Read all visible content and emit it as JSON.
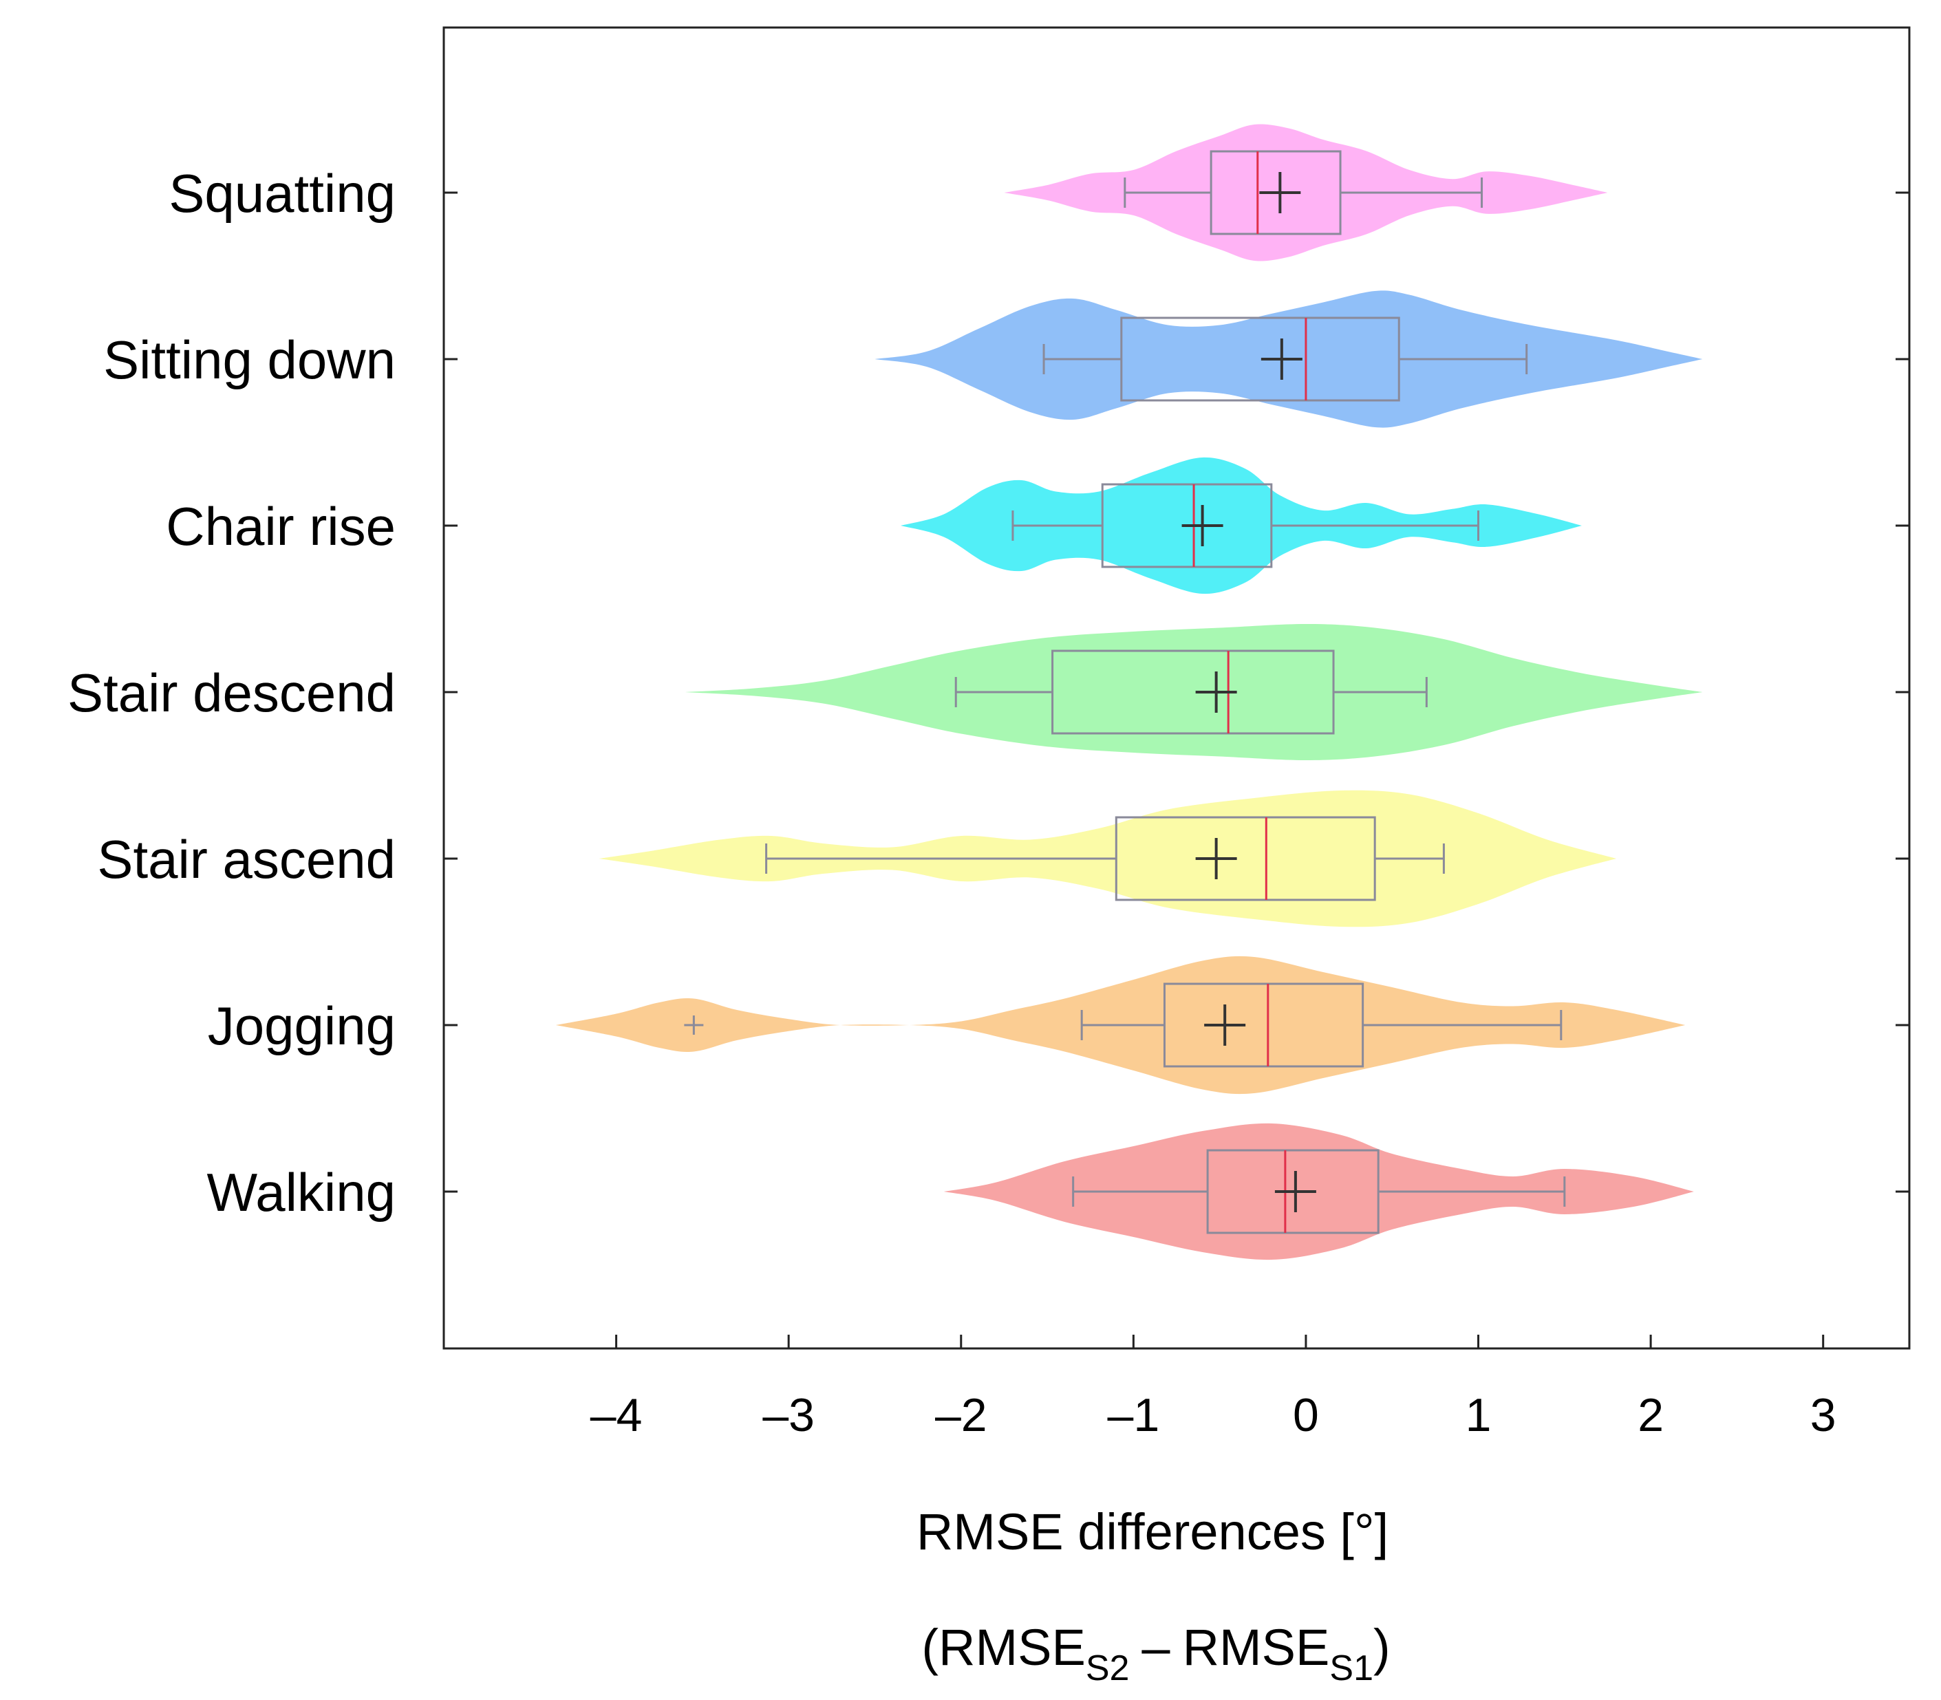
{
  "chart_data": {
    "type": "violin",
    "orientation": "horizontal",
    "xlabel": "RMSE differences [°]",
    "xlabel_formula": {
      "open": "(",
      "term1": "RMSE",
      "sub1": "S2",
      "minus": "–",
      "term2": "RMSE",
      "sub2": "S1",
      "close": ")"
    },
    "xlim": [
      -5,
      3.5
    ],
    "xticks": [
      {
        "value": -4,
        "label": "–4"
      },
      {
        "value": -3,
        "label": "–3"
      },
      {
        "value": -2,
        "label": "–2"
      },
      {
        "value": -1,
        "label": "–1"
      },
      {
        "value": 0,
        "label": "0"
      },
      {
        "value": 1,
        "label": "1"
      },
      {
        "value": 2,
        "label": "2"
      },
      {
        "value": 3,
        "label": "3"
      }
    ],
    "grid": false,
    "series": [
      {
        "name": "Squatting",
        "color": "#ffb3f5",
        "box": {
          "whisker_low": -1.05,
          "q1": -0.55,
          "median": -0.28,
          "q3": 0.2,
          "whisker_high": 1.02
        },
        "mean": -0.15,
        "outliers": [],
        "density": [
          [
            -1.75,
            0.0
          ],
          [
            -1.5,
            0.1
          ],
          [
            -1.25,
            0.25
          ],
          [
            -1.0,
            0.3
          ],
          [
            -0.75,
            0.55
          ],
          [
            -0.5,
            0.75
          ],
          [
            -0.3,
            0.9
          ],
          [
            -0.1,
            0.85
          ],
          [
            0.1,
            0.7
          ],
          [
            0.35,
            0.55
          ],
          [
            0.6,
            0.3
          ],
          [
            0.85,
            0.18
          ],
          [
            1.05,
            0.28
          ],
          [
            1.3,
            0.22
          ],
          [
            1.55,
            0.1
          ],
          [
            1.75,
            0.0
          ]
        ]
      },
      {
        "name": "Sitting down",
        "color": "#90bff8",
        "box": {
          "whisker_low": -1.52,
          "q1": -1.07,
          "median": 0.0,
          "q3": 0.54,
          "whisker_high": 1.28
        },
        "mean": -0.14,
        "outliers": [],
        "density": [
          [
            -2.5,
            0.0
          ],
          [
            -2.2,
            0.1
          ],
          [
            -1.9,
            0.4
          ],
          [
            -1.6,
            0.7
          ],
          [
            -1.35,
            0.8
          ],
          [
            -1.1,
            0.65
          ],
          [
            -0.8,
            0.45
          ],
          [
            -0.5,
            0.45
          ],
          [
            -0.2,
            0.6
          ],
          [
            0.1,
            0.75
          ],
          [
            0.4,
            0.9
          ],
          [
            0.6,
            0.85
          ],
          [
            0.9,
            0.65
          ],
          [
            1.3,
            0.45
          ],
          [
            1.8,
            0.25
          ],
          [
            2.1,
            0.1
          ],
          [
            2.3,
            0.0
          ]
        ]
      },
      {
        "name": "Chair rise",
        "color": "#52eff7",
        "box": {
          "whisker_low": -1.7,
          "q1": -1.18,
          "median": -0.65,
          "q3": -0.2,
          "whisker_high": 1.0
        },
        "mean": -0.6,
        "outliers": [],
        "density": [
          [
            -2.35,
            0.0
          ],
          [
            -2.1,
            0.15
          ],
          [
            -1.85,
            0.5
          ],
          [
            -1.65,
            0.6
          ],
          [
            -1.45,
            0.45
          ],
          [
            -1.2,
            0.45
          ],
          [
            -0.9,
            0.7
          ],
          [
            -0.6,
            0.9
          ],
          [
            -0.35,
            0.75
          ],
          [
            -0.15,
            0.4
          ],
          [
            0.1,
            0.2
          ],
          [
            0.35,
            0.3
          ],
          [
            0.6,
            0.15
          ],
          [
            0.85,
            0.22
          ],
          [
            1.05,
            0.28
          ],
          [
            1.35,
            0.15
          ],
          [
            1.6,
            0.0
          ]
        ]
      },
      {
        "name": "Stair descend",
        "color": "#a8f8b2",
        "box": {
          "whisker_low": -2.03,
          "q1": -1.47,
          "median": -0.45,
          "q3": 0.16,
          "whisker_high": 0.7
        },
        "mean": -0.52,
        "outliers": [],
        "density": [
          [
            -3.6,
            0.0
          ],
          [
            -3.2,
            0.05
          ],
          [
            -2.8,
            0.15
          ],
          [
            -2.4,
            0.35
          ],
          [
            -2.0,
            0.55
          ],
          [
            -1.5,
            0.72
          ],
          [
            -1.0,
            0.8
          ],
          [
            -0.5,
            0.85
          ],
          [
            0.0,
            0.9
          ],
          [
            0.4,
            0.85
          ],
          [
            0.8,
            0.7
          ],
          [
            1.2,
            0.45
          ],
          [
            1.6,
            0.25
          ],
          [
            2.0,
            0.1
          ],
          [
            2.3,
            0.0
          ]
        ]
      },
      {
        "name": "Stair ascend",
        "color": "#fbfba7",
        "box": {
          "whisker_low": -3.13,
          "q1": -1.1,
          "median": -0.23,
          "q3": 0.4,
          "whisker_high": 0.8
        },
        "mean": -0.52,
        "outliers": [],
        "density": [
          [
            -4.1,
            0.0
          ],
          [
            -3.8,
            0.1
          ],
          [
            -3.4,
            0.25
          ],
          [
            -3.1,
            0.3
          ],
          [
            -2.8,
            0.2
          ],
          [
            -2.4,
            0.15
          ],
          [
            -2.0,
            0.3
          ],
          [
            -1.6,
            0.25
          ],
          [
            -1.2,
            0.4
          ],
          [
            -0.8,
            0.65
          ],
          [
            -0.3,
            0.8
          ],
          [
            0.2,
            0.9
          ],
          [
            0.6,
            0.85
          ],
          [
            1.0,
            0.6
          ],
          [
            1.4,
            0.25
          ],
          [
            1.8,
            0.0
          ]
        ]
      },
      {
        "name": "Jogging",
        "color": "#fbcd93",
        "box": {
          "whisker_low": -1.3,
          "q1": -0.82,
          "median": -0.22,
          "q3": 0.33,
          "whisker_high": 1.48
        },
        "mean": -0.47,
        "outliers": [
          -3.55
        ],
        "density": [
          [
            -4.35,
            0.0
          ],
          [
            -4.0,
            0.15
          ],
          [
            -3.75,
            0.3
          ],
          [
            -3.55,
            0.35
          ],
          [
            -3.3,
            0.2
          ],
          [
            -3.0,
            0.08
          ],
          [
            -2.7,
            0.0
          ],
          [
            -2.3,
            0.0
          ],
          [
            -2.0,
            0.05
          ],
          [
            -1.7,
            0.2
          ],
          [
            -1.4,
            0.35
          ],
          [
            -1.0,
            0.6
          ],
          [
            -0.6,
            0.85
          ],
          [
            -0.3,
            0.9
          ],
          [
            0.1,
            0.7
          ],
          [
            0.5,
            0.5
          ],
          [
            0.9,
            0.3
          ],
          [
            1.2,
            0.25
          ],
          [
            1.5,
            0.3
          ],
          [
            1.8,
            0.2
          ],
          [
            2.2,
            0.0
          ]
        ]
      },
      {
        "name": "Walking",
        "color": "#f7a4a4",
        "box": {
          "whisker_low": -1.35,
          "q1": -0.57,
          "median": -0.12,
          "q3": 0.42,
          "whisker_high": 1.5
        },
        "mean": -0.06,
        "outliers": [],
        "density": [
          [
            -2.1,
            0.0
          ],
          [
            -1.8,
            0.12
          ],
          [
            -1.4,
            0.4
          ],
          [
            -1.0,
            0.6
          ],
          [
            -0.6,
            0.8
          ],
          [
            -0.2,
            0.9
          ],
          [
            0.2,
            0.75
          ],
          [
            0.5,
            0.5
          ],
          [
            0.9,
            0.3
          ],
          [
            1.2,
            0.2
          ],
          [
            1.5,
            0.3
          ],
          [
            1.9,
            0.2
          ],
          [
            2.25,
            0.0
          ]
        ]
      }
    ]
  }
}
